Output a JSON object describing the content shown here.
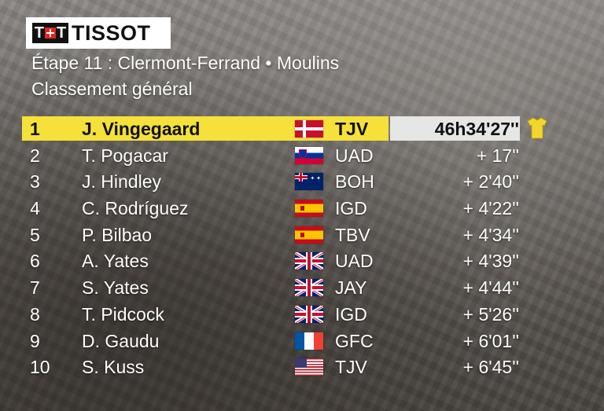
{
  "sponsor": {
    "logo_text": "TISSOT",
    "logo_mark": "T+T"
  },
  "header": {
    "stage": "Étape 11 : Clermont-Ferrand • Moulins",
    "classification": "Classement général"
  },
  "leader_jersey": {
    "icon": "yellow-jersey-icon",
    "color": "#f2d729"
  },
  "colors": {
    "leader_band": "#f5e13a",
    "time_box": "#e6e6e6"
  },
  "standings": [
    {
      "rank": "1",
      "rider": "J. Vingegaard",
      "flag": "denmark-flag-icon",
      "team": "TJV",
      "time": "46h34'27''"
    },
    {
      "rank": "2",
      "rider": "T. Pogacar",
      "flag": "slovenia-flag-icon",
      "team": "UAD",
      "time": "+ 17''"
    },
    {
      "rank": "3",
      "rider": "J. Hindley",
      "flag": "australia-flag-icon",
      "team": "BOH",
      "time": "+ 2'40''"
    },
    {
      "rank": "4",
      "rider": "C. Rodríguez",
      "flag": "spain-flag-icon",
      "team": "IGD",
      "time": "+ 4'22''"
    },
    {
      "rank": "5",
      "rider": "P. Bilbao",
      "flag": "spain-flag-icon",
      "team": "TBV",
      "time": "+ 4'34''"
    },
    {
      "rank": "6",
      "rider": "A. Yates",
      "flag": "uk-flag-icon",
      "team": "UAD",
      "time": "+ 4'39''"
    },
    {
      "rank": "7",
      "rider": "S. Yates",
      "flag": "uk-flag-icon",
      "team": "JAY",
      "time": "+ 4'44''"
    },
    {
      "rank": "8",
      "rider": "T. Pidcock",
      "flag": "uk-flag-icon",
      "team": "IGD",
      "time": "+ 5'26''"
    },
    {
      "rank": "9",
      "rider": "D. Gaudu",
      "flag": "france-flag-icon",
      "team": "GFC",
      "time": "+ 6'01''"
    },
    {
      "rank": "10",
      "rider": "S. Kuss",
      "flag": "usa-flag-icon",
      "team": "TJV",
      "time": "+ 6'45''"
    }
  ]
}
